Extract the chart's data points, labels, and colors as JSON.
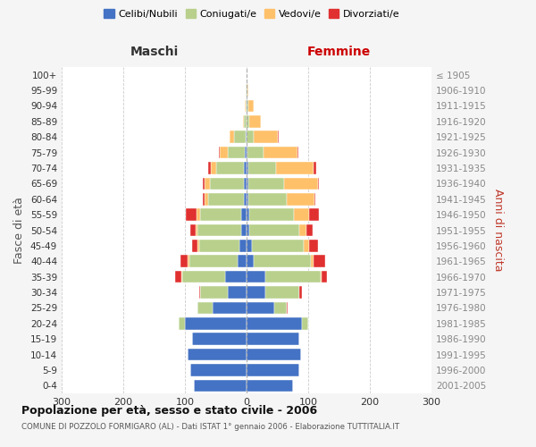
{
  "age_groups": [
    "0-4",
    "5-9",
    "10-14",
    "15-19",
    "20-24",
    "25-29",
    "30-34",
    "35-39",
    "40-44",
    "45-49",
    "50-54",
    "55-59",
    "60-64",
    "65-69",
    "70-74",
    "75-79",
    "80-84",
    "85-89",
    "90-94",
    "95-99",
    "100+"
  ],
  "birth_years": [
    "2001-2005",
    "1996-2000",
    "1991-1995",
    "1986-1990",
    "1981-1985",
    "1976-1980",
    "1971-1975",
    "1966-1970",
    "1961-1965",
    "1956-1960",
    "1951-1955",
    "1946-1950",
    "1941-1945",
    "1936-1940",
    "1931-1935",
    "1926-1930",
    "1921-1925",
    "1916-1920",
    "1911-1915",
    "1906-1910",
    "≤ 1905"
  ],
  "males": {
    "celibi": [
      85,
      92,
      95,
      88,
      100,
      55,
      30,
      35,
      15,
      12,
      8,
      8,
      5,
      5,
      5,
      3,
      2,
      0,
      0,
      0,
      0
    ],
    "coniugati": [
      0,
      0,
      0,
      0,
      10,
      25,
      45,
      70,
      78,
      65,
      72,
      68,
      58,
      55,
      45,
      28,
      18,
      4,
      2,
      1,
      0
    ],
    "vedovi": [
      0,
      0,
      0,
      0,
      0,
      0,
      0,
      1,
      2,
      2,
      3,
      5,
      5,
      8,
      8,
      12,
      8,
      2,
      1,
      0,
      0
    ],
    "divorziati": [
      0,
      0,
      0,
      0,
      0,
      0,
      2,
      10,
      12,
      10,
      8,
      18,
      3,
      3,
      5,
      2,
      0,
      0,
      0,
      0,
      0
    ]
  },
  "females": {
    "nubili": [
      75,
      85,
      88,
      85,
      90,
      45,
      30,
      30,
      12,
      8,
      5,
      5,
      3,
      3,
      3,
      2,
      0,
      0,
      0,
      0,
      0
    ],
    "coniugate": [
      0,
      0,
      0,
      0,
      10,
      20,
      55,
      90,
      92,
      85,
      80,
      72,
      62,
      58,
      45,
      25,
      12,
      5,
      3,
      1,
      0
    ],
    "vedove": [
      0,
      0,
      0,
      0,
      0,
      0,
      0,
      2,
      5,
      8,
      12,
      25,
      45,
      55,
      60,
      55,
      38,
      18,
      8,
      2,
      0
    ],
    "divorziate": [
      0,
      0,
      0,
      0,
      0,
      2,
      5,
      8,
      18,
      15,
      10,
      15,
      2,
      2,
      5,
      2,
      2,
      0,
      0,
      0,
      0
    ]
  },
  "color_celibi": "#4472c4",
  "color_coniugati": "#b8d08c",
  "color_vedovi": "#ffc06a",
  "color_divorziati": "#e03030",
  "title": "Popolazione per età, sesso e stato civile - 2006",
  "subtitle": "COMUNE DI POZZOLO FORMIGARO (AL) - Dati ISTAT 1° gennaio 2006 - Elaborazione TUTTITALIA.IT",
  "xlabel_left": "Maschi",
  "xlabel_right": "Femmine",
  "ylabel_left": "Fasce di età",
  "ylabel_right": "Anni di nascita",
  "xlim": 300,
  "background_color": "#f5f5f5",
  "plot_bg_color": "#ffffff"
}
